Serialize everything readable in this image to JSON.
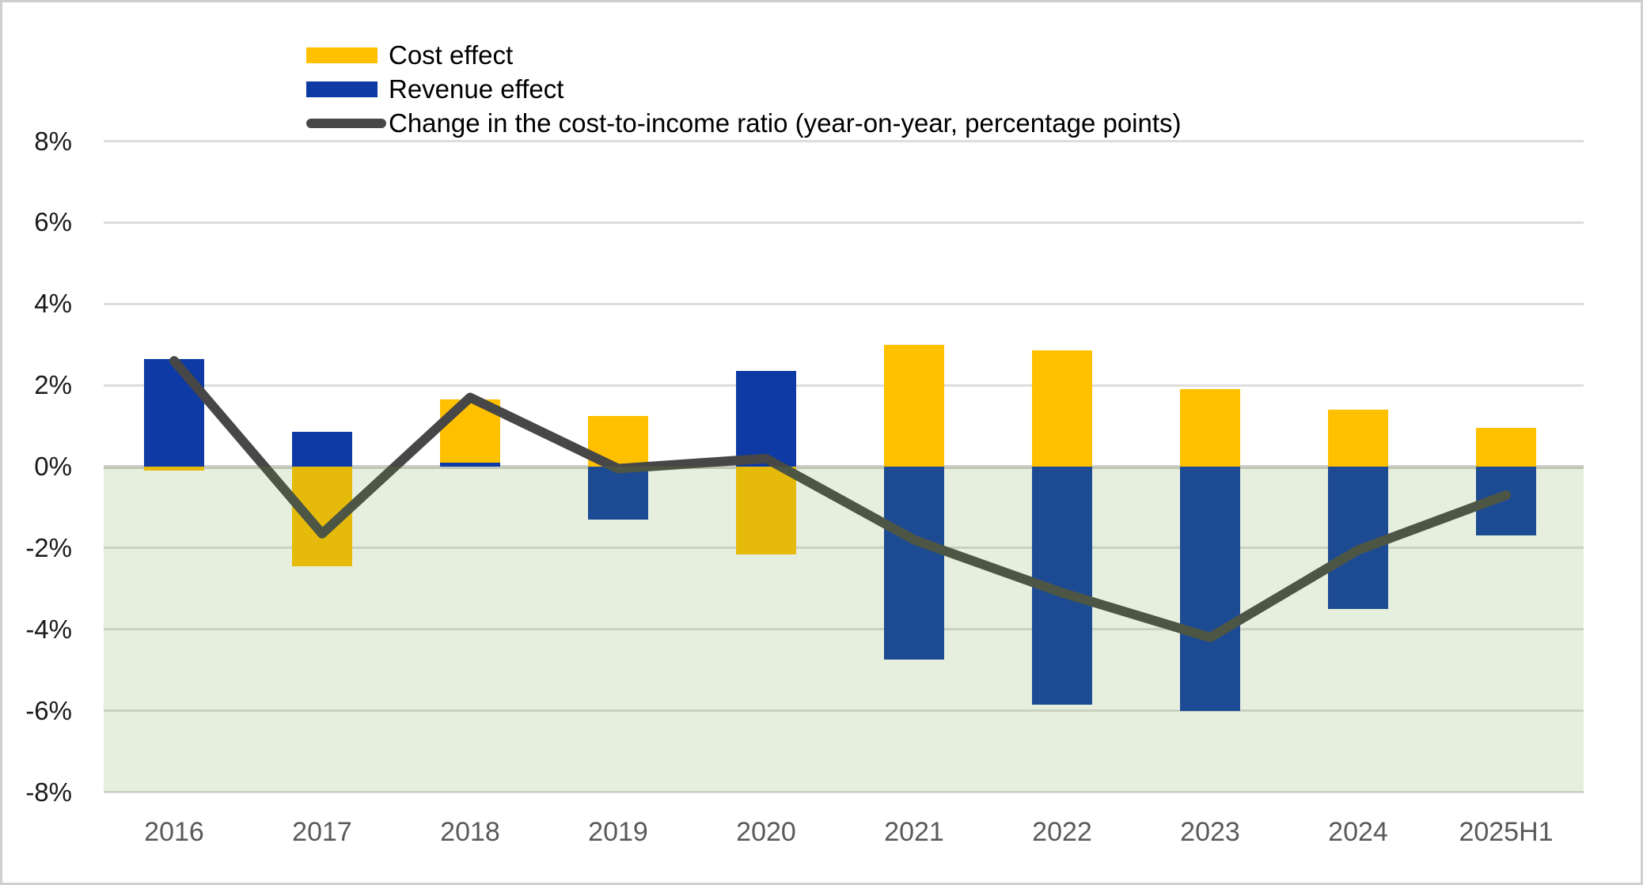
{
  "figure": {
    "kind": "stacked-bar-and-line-chart",
    "title": ""
  },
  "legend": {
    "items": [
      {
        "label": "Cost effect",
        "swatch": "bar",
        "color": "#FFC000"
      },
      {
        "label": "Revenue effect",
        "swatch": "bar",
        "color": "#0E3AA5"
      },
      {
        "label": "Change in the cost-to-income ratio (year-on-year, percentage points)",
        "swatch": "line",
        "color": "#474747"
      }
    ]
  },
  "chart_data": {
    "type": "combo",
    "categories": [
      "2016",
      "2017",
      "2018",
      "2019",
      "2020",
      "2021",
      "2022",
      "2023",
      "2024",
      "2025H1"
    ],
    "series": [
      {
        "name": "Cost effect",
        "type": "bar",
        "stack": "effects",
        "color": "#FFC000",
        "values": [
          -0.1,
          -2.45,
          1.55,
          1.25,
          -2.15,
          3.0,
          2.85,
          1.9,
          1.4,
          0.95
        ]
      },
      {
        "name": "Revenue effect",
        "type": "bar",
        "stack": "effects",
        "color": "#0E3AA5",
        "values": [
          2.65,
          0.85,
          0.1,
          -1.3,
          2.35,
          -4.75,
          -5.85,
          -6.0,
          -3.5,
          -1.7
        ]
      },
      {
        "name": "Change in the cost-to-income ratio (year-on-year, percentage points)",
        "type": "line",
        "color": "#474747",
        "values": [
          2.6,
          -1.65,
          1.7,
          -0.05,
          0.2,
          -1.8,
          -3.1,
          -4.2,
          -2.05,
          -0.7
        ]
      }
    ],
    "ylim": [
      -8,
      8
    ],
    "y_ticks": {
      "labels": [
        "8%",
        "6%",
        "4%",
        "2%",
        "0%",
        "-2%",
        "-4%",
        "-6%",
        "-8%"
      ],
      "values": [
        8,
        6,
        4,
        2,
        0,
        -2,
        -4,
        -6,
        -8
      ]
    },
    "xlabel": "",
    "ylabel": "",
    "grid": true,
    "legend_position": "top-left-inside",
    "negative_region_shaded": true
  },
  "colors": {
    "cost_bar": "#FFC000",
    "revenue_bar": "#0E3AA5",
    "ratio_line": "#474747",
    "negative_band": "rgba(104,161,58,0.17)",
    "gridline": "#dddddd",
    "zero_line": "#cfcfcf",
    "y_tick_text": "#1a1a1a",
    "x_tick_text": "#595959",
    "figure_border": "#cfcfcf",
    "background": "#ffffff"
  }
}
